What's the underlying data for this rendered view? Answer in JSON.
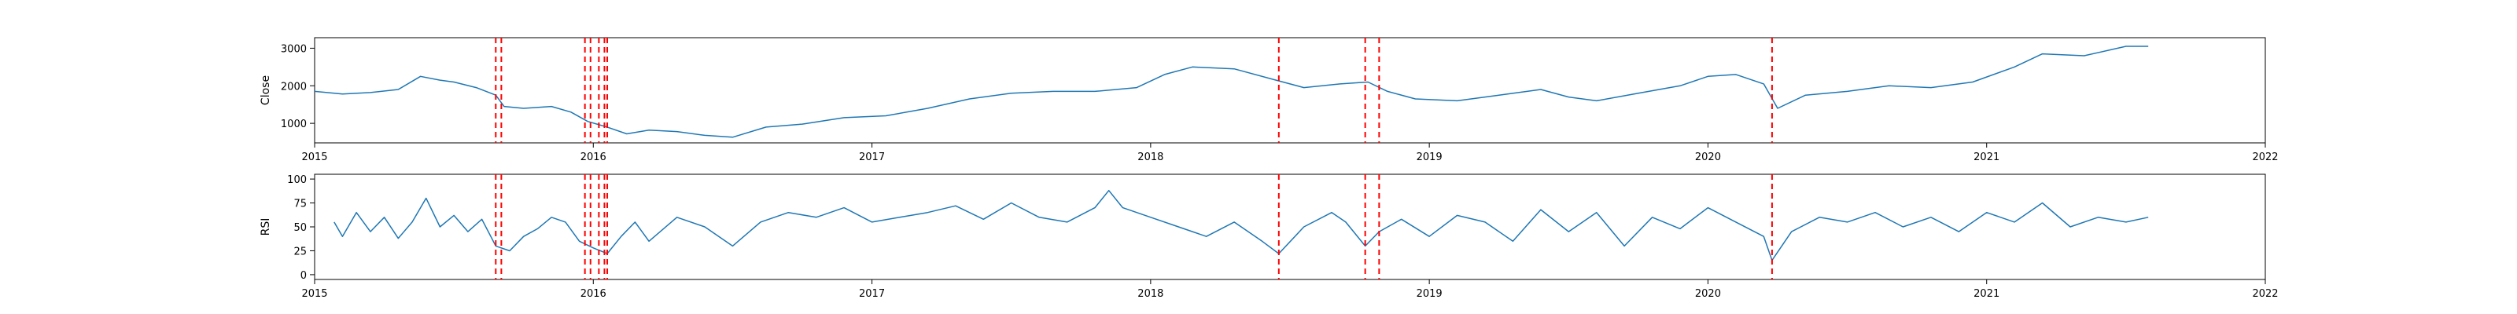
{
  "chart_data": [
    {
      "type": "line",
      "title": "",
      "xlabel": "",
      "ylabel": "Close",
      "xlim": [
        2015.0,
        2022.0
      ],
      "ylim": [
        480,
        3280
      ],
      "xticks": [
        2015,
        2016,
        2017,
        2018,
        2019,
        2020,
        2021,
        2022
      ],
      "xtick_labels": [
        "2015",
        "2016",
        "2017",
        "2018",
        "2019",
        "2020",
        "2021",
        "2022"
      ],
      "yticks": [
        1000,
        2000,
        3000
      ],
      "ytick_labels": [
        "1000",
        "2000",
        "3000"
      ],
      "grid": false,
      "line_color": "#1f77b4",
      "marker_color": "#ff0000",
      "series": [
        {
          "x": [
            2015.0,
            2015.1,
            2015.2,
            2015.3,
            2015.38,
            2015.45,
            2015.5,
            2015.58,
            2015.65,
            2015.68,
            2015.75,
            2015.85,
            2015.92,
            2015.98,
            2016.05,
            2016.12,
            2016.2,
            2016.3,
            2016.4,
            2016.5,
            2016.62,
            2016.75,
            2016.9,
            2017.05,
            2017.2,
            2017.35,
            2017.5,
            2017.65,
            2017.8,
            2017.95,
            2018.05,
            2018.15,
            2018.3,
            2018.45,
            2018.55,
            2018.68,
            2018.78,
            2018.85,
            2018.95,
            2019.1,
            2019.25,
            2019.4,
            2019.5,
            2019.6,
            2019.75,
            2019.9,
            2020.0,
            2020.1,
            2020.2,
            2020.25,
            2020.35,
            2020.5,
            2020.65,
            2020.8,
            2020.95,
            2021.1,
            2021.2,
            2021.35,
            2021.5,
            2021.58
          ],
          "y": [
            1850,
            1780,
            1820,
            1900,
            2250,
            2150,
            2100,
            1950,
            1750,
            1450,
            1400,
            1450,
            1300,
            1050,
            900,
            720,
            820,
            780,
            680,
            630,
            900,
            980,
            1150,
            1200,
            1400,
            1650,
            1800,
            1850,
            1850,
            1950,
            2300,
            2500,
            2450,
            2150,
            1950,
            2050,
            2100,
            1850,
            1650,
            1600,
            1750,
            1900,
            1700,
            1600,
            1800,
            2000,
            2250,
            2300,
            2050,
            1400,
            1750,
            1850,
            2000,
            1950,
            2100,
            2500,
            2850,
            2800,
            3050,
            3050
          ]
        }
      ],
      "event_markers_x": [
        2015.65,
        2015.67,
        2015.97,
        2015.99,
        2016.02,
        2016.04,
        2016.05,
        2018.46,
        2018.77,
        2018.82,
        2020.23
      ]
    },
    {
      "type": "line",
      "title": "",
      "xlabel": "",
      "ylabel": "RSI",
      "xlim": [
        2015.0,
        2022.0
      ],
      "ylim": [
        -5,
        105
      ],
      "xticks": [
        2015,
        2016,
        2017,
        2018,
        2019,
        2020,
        2021,
        2022
      ],
      "xtick_labels": [
        "2015",
        "2016",
        "2017",
        "2018",
        "2019",
        "2020",
        "2021",
        "2022"
      ],
      "yticks": [
        0,
        25,
        50,
        75,
        100
      ],
      "ytick_labels": [
        "0",
        "25",
        "50",
        "75",
        "100"
      ],
      "grid": false,
      "line_color": "#1f77b4",
      "marker_color": "#ff0000",
      "series": [
        {
          "x": [
            2015.07,
            2015.1,
            2015.15,
            2015.2,
            2015.25,
            2015.3,
            2015.35,
            2015.4,
            2015.45,
            2015.5,
            2015.55,
            2015.6,
            2015.65,
            2015.7,
            2015.75,
            2015.8,
            2015.85,
            2015.9,
            2015.95,
            2016.0,
            2016.05,
            2016.1,
            2016.15,
            2016.2,
            2016.3,
            2016.4,
            2016.5,
            2016.6,
            2016.7,
            2016.8,
            2016.9,
            2017.0,
            2017.1,
            2017.2,
            2017.3,
            2017.4,
            2017.5,
            2017.6,
            2017.7,
            2017.8,
            2017.85,
            2017.9,
            2018.0,
            2018.1,
            2018.2,
            2018.3,
            2018.4,
            2018.46,
            2018.55,
            2018.65,
            2018.7,
            2018.77,
            2018.82,
            2018.9,
            2019.0,
            2019.1,
            2019.2,
            2019.3,
            2019.4,
            2019.5,
            2019.6,
            2019.7,
            2019.8,
            2019.9,
            2020.0,
            2020.1,
            2020.2,
            2020.23,
            2020.3,
            2020.4,
            2020.5,
            2020.6,
            2020.7,
            2020.8,
            2020.9,
            2021.0,
            2021.1,
            2021.2,
            2021.3,
            2021.4,
            2021.5,
            2021.58
          ],
          "y": [
            55,
            40,
            65,
            45,
            60,
            38,
            55,
            80,
            50,
            62,
            45,
            58,
            30,
            25,
            40,
            48,
            60,
            55,
            35,
            28,
            22,
            40,
            55,
            35,
            60,
            50,
            30,
            55,
            65,
            60,
            70,
            55,
            60,
            65,
            72,
            58,
            75,
            60,
            55,
            70,
            88,
            70,
            60,
            50,
            40,
            55,
            35,
            22,
            50,
            65,
            55,
            30,
            45,
            58,
            40,
            62,
            55,
            35,
            68,
            45,
            65,
            30,
            60,
            48,
            70,
            55,
            40,
            15,
            45,
            60,
            55,
            65,
            50,
            60,
            45,
            65,
            55,
            75,
            50,
            60,
            55,
            60
          ]
        }
      ],
      "event_markers_x": [
        2015.65,
        2015.67,
        2015.97,
        2015.99,
        2016.02,
        2016.04,
        2016.05,
        2018.46,
        2018.77,
        2018.82,
        2020.23
      ]
    }
  ]
}
